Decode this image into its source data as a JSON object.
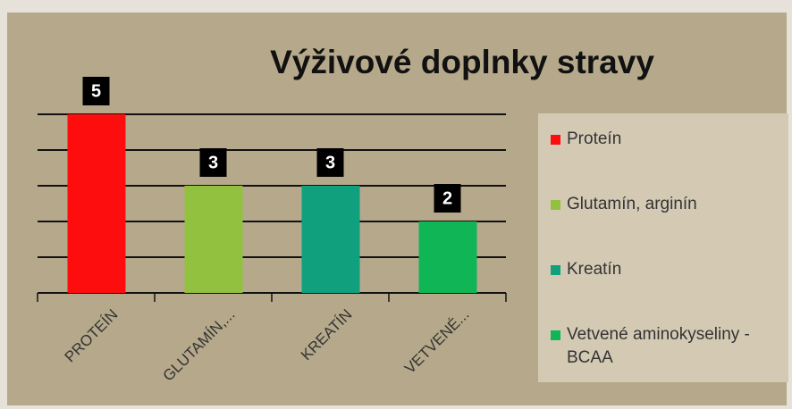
{
  "chart_data": {
    "type": "bar",
    "title": "Výživové doplnky stravy",
    "categories": [
      "PROTEÍN",
      "GLUTAMÍN,...",
      "KREATÍN",
      "VETVENÉ..."
    ],
    "legend": [
      "Proteín",
      "Glutamín, arginín",
      "Kreatín",
      "Vetvené aminokyseliny - BCAA"
    ],
    "values": [
      5,
      3,
      3,
      2
    ],
    "colors": [
      "#fd0d0d",
      "#92c13f",
      "#11a07e",
      "#10b555"
    ],
    "ylim": [
      0,
      5
    ],
    "yticks": [
      0,
      1,
      2,
      3,
      4,
      5
    ],
    "grid": true
  }
}
